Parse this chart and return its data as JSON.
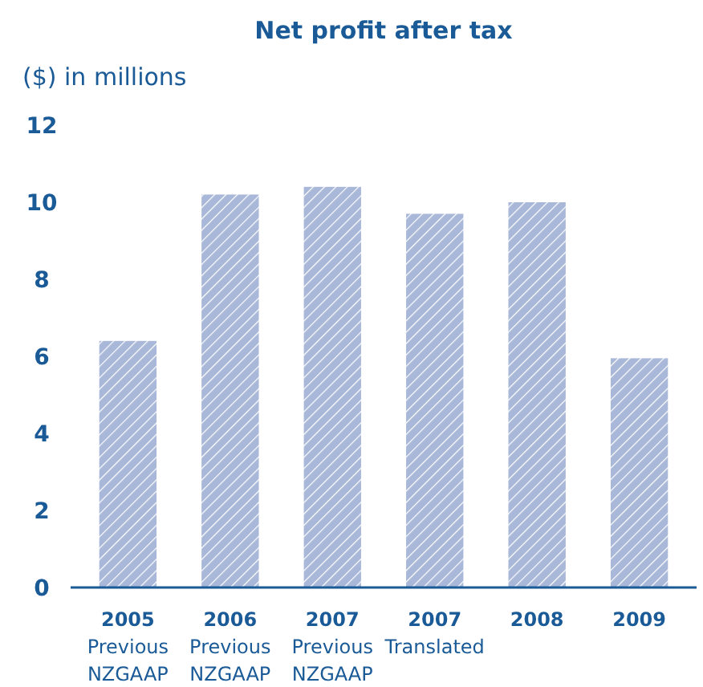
{
  "chart_data": {
    "type": "bar",
    "title": "Net profit after tax",
    "ylabel": "($) in millions",
    "categories": [
      "2005\nPrevious\nNZGAAP",
      "2006\nPrevious\nNZGAAP",
      "2007\nPrevious\nNZGAAP",
      "2007\nTranslated",
      "2008",
      "2009"
    ],
    "values": [
      6.4,
      10.2,
      10.4,
      9.7,
      10.0,
      5.95
    ],
    "color": "#a9b8d8",
    "ylim": [
      0,
      12
    ],
    "yticks": [
      0,
      2,
      4,
      6,
      8,
      10,
      12
    ],
    "grid": false
  }
}
